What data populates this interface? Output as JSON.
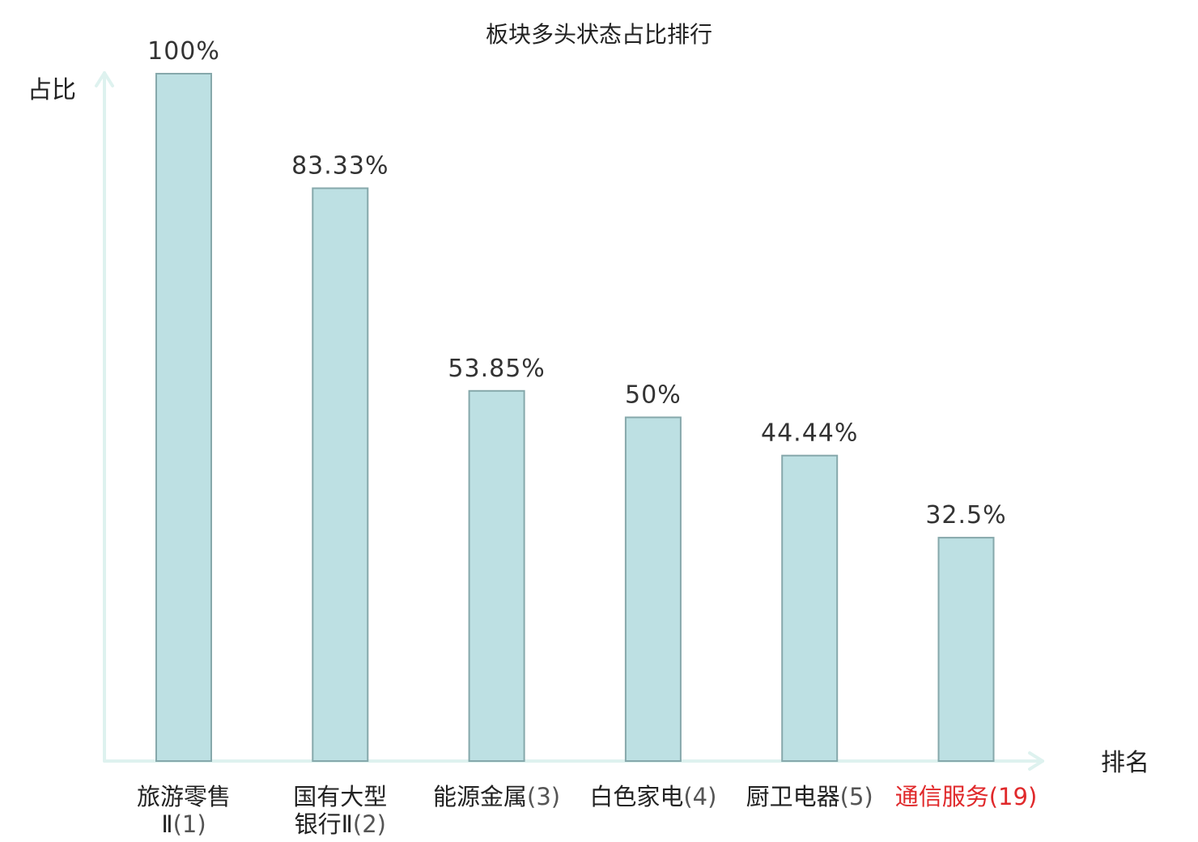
{
  "chart_data": {
    "type": "bar",
    "title": "板块多头状态占比排行",
    "ylabel": "占比",
    "xlabel": "排名",
    "ylim": [
      0,
      100
    ],
    "grid": false,
    "categories": [
      {
        "name_lines": [
          "旅游零售",
          "Ⅱ"
        ],
        "rank": "(1)",
        "highlight": false
      },
      {
        "name_lines": [
          "国有大型",
          "银行Ⅱ"
        ],
        "rank": "(2)",
        "highlight": false
      },
      {
        "name_lines": [
          "能源金属"
        ],
        "rank": "(3)",
        "highlight": false
      },
      {
        "name_lines": [
          "白色家电"
        ],
        "rank": "(4)",
        "highlight": false
      },
      {
        "name_lines": [
          "厨卫电器"
        ],
        "rank": "(5)",
        "highlight": false
      },
      {
        "name_lines": [
          "通信服务"
        ],
        "rank": "(19)",
        "highlight": true
      }
    ],
    "values": [
      100,
      83.33,
      53.85,
      50,
      44.44,
      32.5
    ],
    "value_labels": [
      "100%",
      "83.33%",
      "53.85%",
      "50%",
      "44.44%",
      "32.5%"
    ],
    "colors": {
      "bar_fill": "#bde0e3",
      "bar_stroke": "#86a8ab",
      "axis": "#def2ef",
      "highlight": "#e0292b"
    }
  }
}
